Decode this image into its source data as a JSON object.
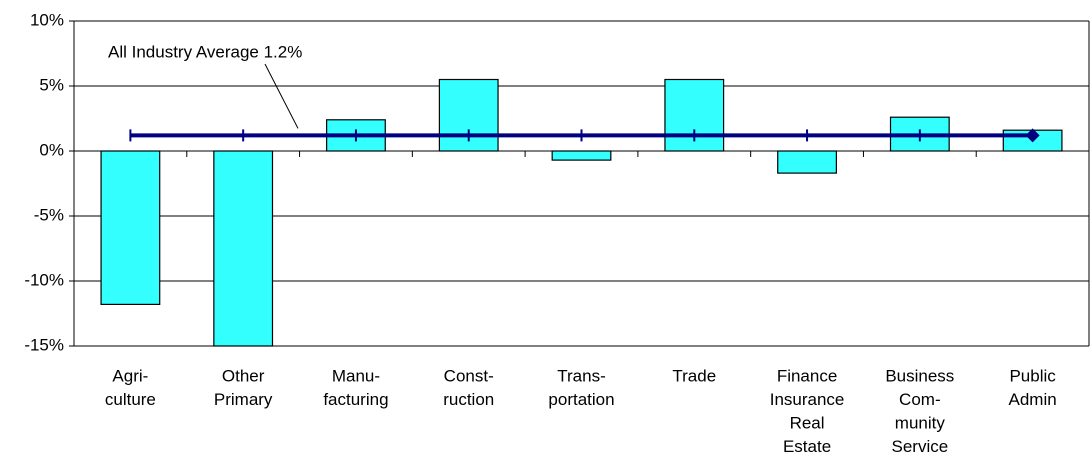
{
  "chart_data": {
    "type": "bar",
    "categories": [
      [
        "Agri-",
        "culture"
      ],
      [
        "Other",
        "Primary"
      ],
      [
        "Manu-",
        "facturing"
      ],
      [
        "Const-",
        "ruction"
      ],
      [
        "Trans-",
        "portation"
      ],
      [
        "Trade"
      ],
      [
        "Finance",
        "Insurance",
        "Real",
        "Estate"
      ],
      [
        "Business",
        "Com-",
        "munity",
        "Service"
      ],
      [
        "Public",
        "Admin"
      ]
    ],
    "values": [
      -11.8,
      -15,
      2.4,
      5.5,
      -0.7,
      5.5,
      -1.7,
      2.6,
      1.6
    ],
    "color": "#33ffff",
    "ylim": [
      -15,
      10
    ],
    "yticks": [
      {
        "value": -15,
        "label": "-15%"
      },
      {
        "value": -10,
        "label": "-10%"
      },
      {
        "value": -5,
        "label": "-5%"
      },
      {
        "value": 0,
        "label": "0%"
      },
      {
        "value": 5,
        "label": "5%"
      },
      {
        "value": 10,
        "label": "10%"
      }
    ],
    "grid": true,
    "reference_line": {
      "value": 1.2,
      "label": "All Industry Average 1.2%",
      "color": "#000080"
    }
  }
}
